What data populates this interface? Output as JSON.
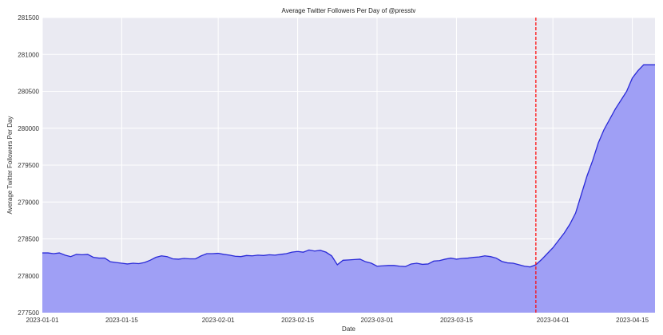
{
  "chart_data": {
    "type": "area",
    "title": "Average Twitter Followers Per Day of @presstv",
    "xlabel": "Date",
    "ylabel": "Average Twitter Followers Per Day",
    "ylim": [
      277500,
      281500
    ],
    "xlim": [
      "2023-01-01",
      "2023-04-19"
    ],
    "yticks": [
      "277500",
      "278000",
      "278500",
      "279000",
      "279500",
      "280000",
      "280500",
      "281000",
      "281500"
    ],
    "xticks": [
      "2023-01-01",
      "2023-01-15",
      "2023-02-01",
      "2023-02-15",
      "2023-03-01",
      "2023-03-15",
      "2023-04-01",
      "2023-04-15"
    ],
    "grid": true,
    "legend": "none",
    "colors": {
      "background": "#eaeaf2",
      "line": "#2a2ad8",
      "fill": "#9f9ff5",
      "vline": "#ff0000",
      "grid": "#ffffff"
    },
    "vline_date": "2023-03-29",
    "x": [
      "2023-01-01",
      "2023-01-02",
      "2023-01-03",
      "2023-01-04",
      "2023-01-05",
      "2023-01-06",
      "2023-01-07",
      "2023-01-08",
      "2023-01-09",
      "2023-01-10",
      "2023-01-11",
      "2023-01-12",
      "2023-01-13",
      "2023-01-14",
      "2023-01-15",
      "2023-01-16",
      "2023-01-17",
      "2023-01-18",
      "2023-01-19",
      "2023-01-20",
      "2023-01-21",
      "2023-01-22",
      "2023-01-23",
      "2023-01-24",
      "2023-01-25",
      "2023-01-26",
      "2023-01-27",
      "2023-01-28",
      "2023-01-29",
      "2023-01-30",
      "2023-01-31",
      "2023-02-01",
      "2023-02-02",
      "2023-02-03",
      "2023-02-04",
      "2023-02-05",
      "2023-02-06",
      "2023-02-07",
      "2023-02-08",
      "2023-02-09",
      "2023-02-10",
      "2023-02-11",
      "2023-02-12",
      "2023-02-13",
      "2023-02-14",
      "2023-02-15",
      "2023-02-16",
      "2023-02-17",
      "2023-02-18",
      "2023-02-19",
      "2023-02-20",
      "2023-02-21",
      "2023-02-22",
      "2023-02-23",
      "2023-02-24",
      "2023-02-25",
      "2023-02-26",
      "2023-02-27",
      "2023-02-28",
      "2023-03-01",
      "2023-03-02",
      "2023-03-03",
      "2023-03-04",
      "2023-03-05",
      "2023-03-06",
      "2023-03-07",
      "2023-03-08",
      "2023-03-09",
      "2023-03-10",
      "2023-03-11",
      "2023-03-12",
      "2023-03-13",
      "2023-03-14",
      "2023-03-15",
      "2023-03-16",
      "2023-03-17",
      "2023-03-18",
      "2023-03-19",
      "2023-03-20",
      "2023-03-21",
      "2023-03-22",
      "2023-03-23",
      "2023-03-24",
      "2023-03-25",
      "2023-03-26",
      "2023-03-27",
      "2023-03-28",
      "2023-03-29",
      "2023-03-30",
      "2023-03-31",
      "2023-04-01",
      "2023-04-02",
      "2023-04-03",
      "2023-04-04",
      "2023-04-05",
      "2023-04-06",
      "2023-04-07",
      "2023-04-08",
      "2023-04-09",
      "2023-04-10",
      "2023-04-11",
      "2023-04-12",
      "2023-04-13",
      "2023-04-14",
      "2023-04-15",
      "2023-04-16",
      "2023-04-17",
      "2023-04-18",
      "2023-04-19"
    ],
    "y": [
      278310,
      278310,
      278300,
      278310,
      278280,
      278260,
      278290,
      278285,
      278290,
      278250,
      278240,
      278240,
      278190,
      278180,
      278170,
      278160,
      278170,
      278165,
      278180,
      278210,
      278250,
      278270,
      278260,
      278230,
      278225,
      278235,
      278230,
      278230,
      278270,
      278300,
      278300,
      278305,
      278290,
      278280,
      278265,
      278260,
      278275,
      278270,
      278280,
      278275,
      278285,
      278280,
      278290,
      278300,
      278320,
      278330,
      278320,
      278350,
      278335,
      278345,
      278320,
      278270,
      278150,
      278210,
      278215,
      278220,
      278225,
      278190,
      278170,
      278130,
      278135,
      278140,
      278140,
      278130,
      278125,
      278160,
      278170,
      278155,
      278160,
      278200,
      278205,
      278225,
      278240,
      278225,
      278235,
      278240,
      278250,
      278255,
      278270,
      278260,
      278240,
      278195,
      278175,
      278170,
      278150,
      278130,
      278120,
      278150,
      278220,
      278300,
      278380,
      278480,
      278580,
      278700,
      278850,
      279100,
      279350,
      279560,
      279800,
      279980,
      280120,
      280260,
      280380,
      280500,
      280680,
      280780,
      280860,
      280860,
      280860
    ]
  }
}
